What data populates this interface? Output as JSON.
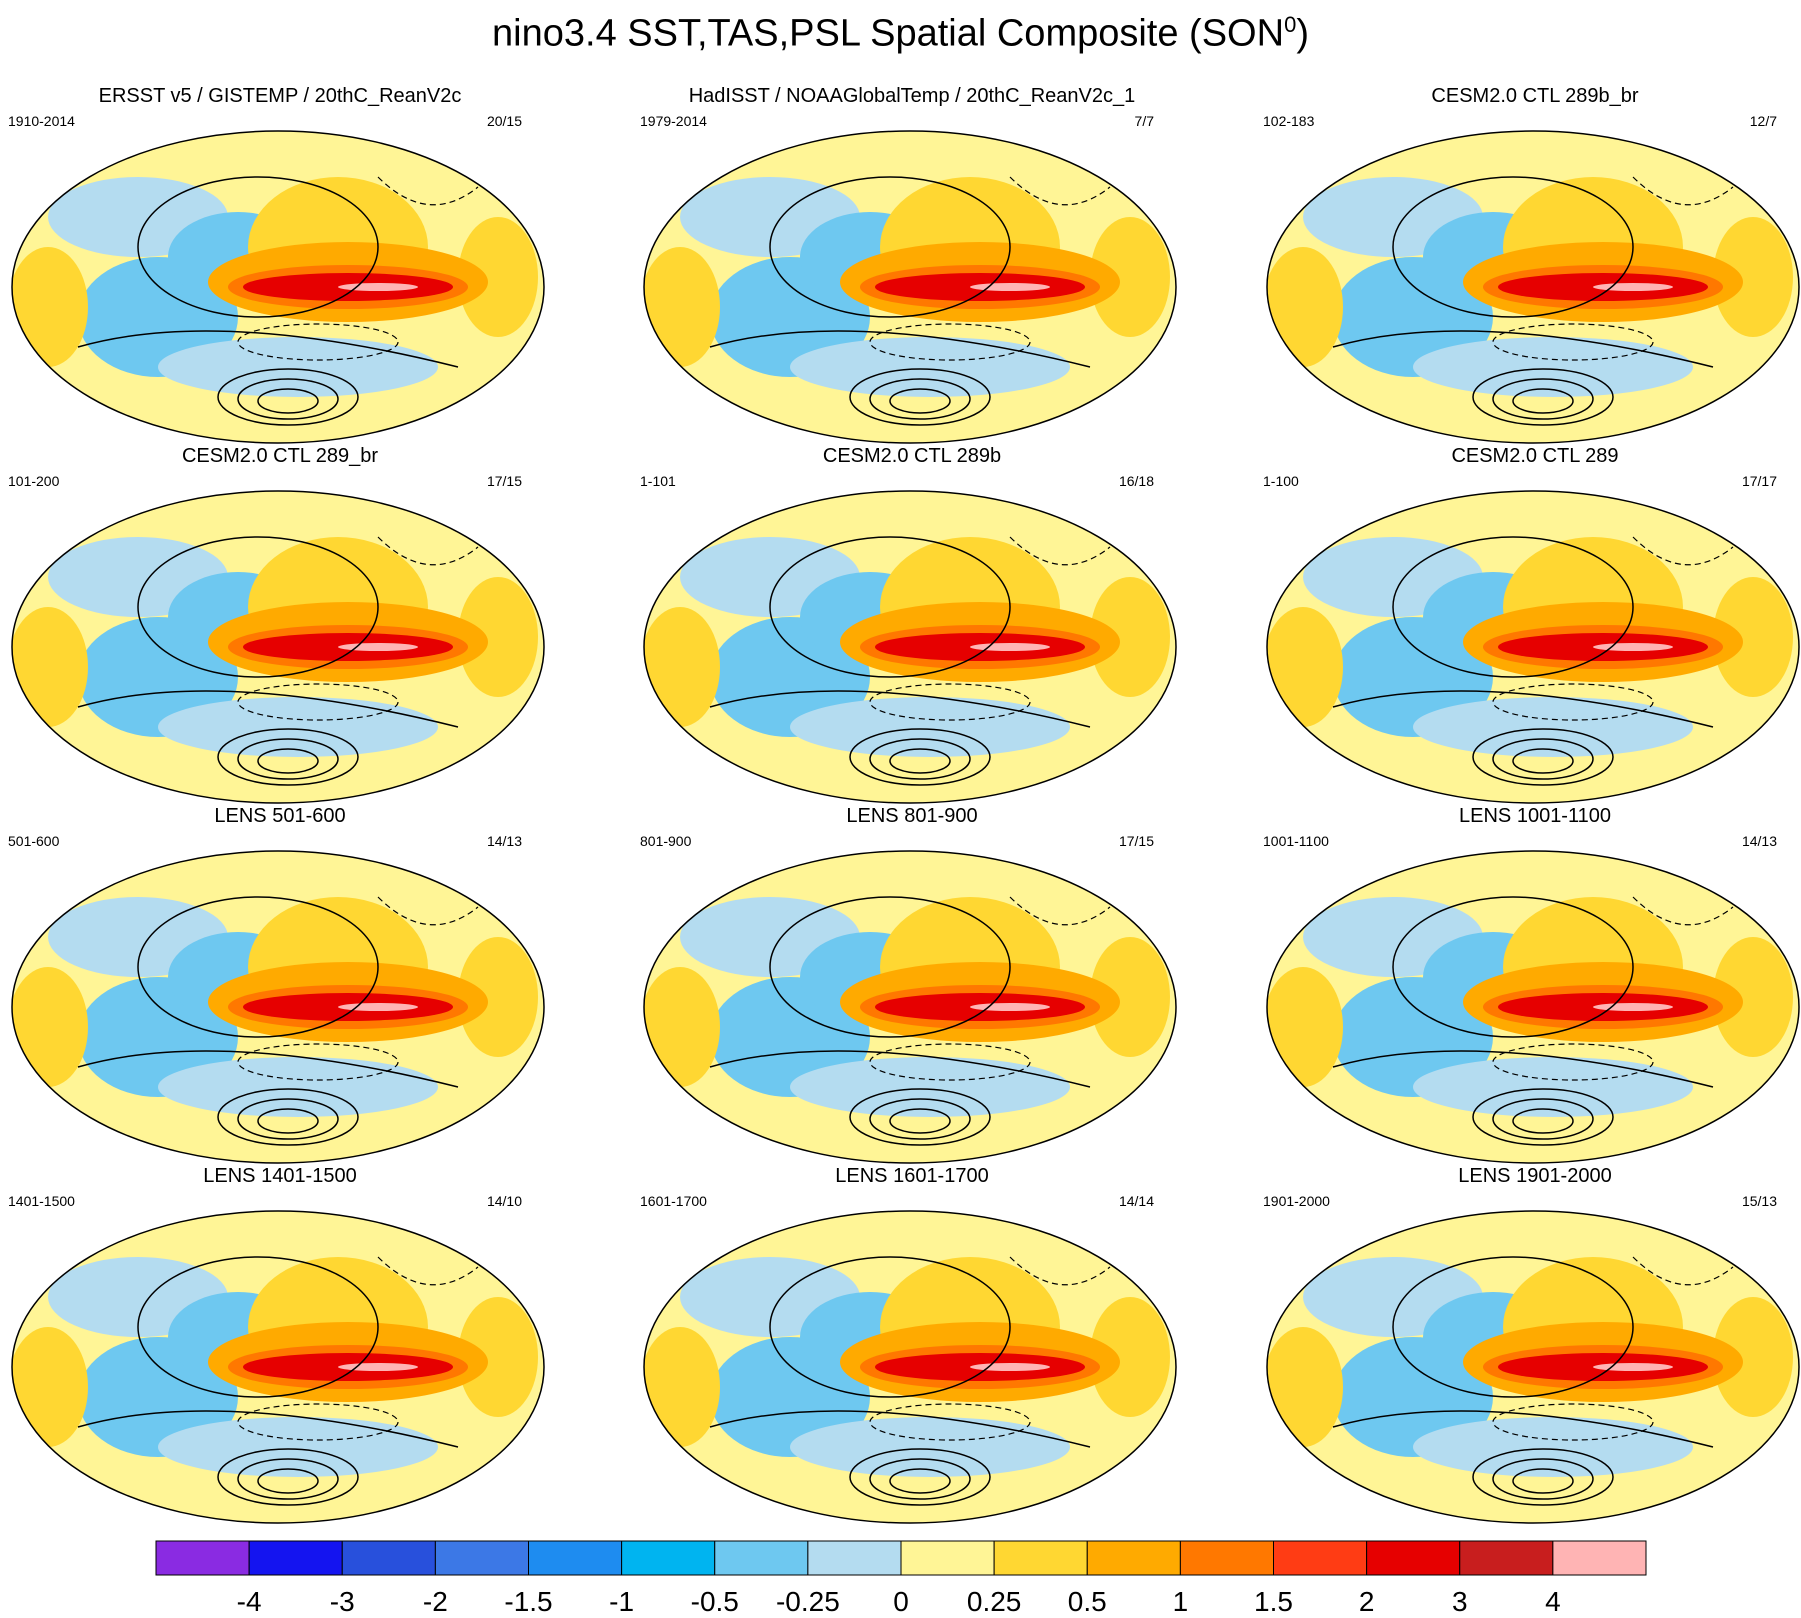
{
  "title": {
    "main": "nino3.4 SST,TAS,PSL Spatial Composite (SON",
    "superscript": "0",
    "close": ")"
  },
  "panels": [
    {
      "title": "ERSST v5 / GISTEMP / 20thC_ReanV2c",
      "years": "1910-2014",
      "count": "20/15"
    },
    {
      "title": "HadISST / NOAAGlobalTemp / 20thC_ReanV2c_1",
      "years": "1979-2014",
      "count": "7/7"
    },
    {
      "title": "CESM2.0 CTL 289b_br",
      "years": "102-183",
      "count": "12/7"
    },
    {
      "title": "CESM2.0 CTL 289_br",
      "years": "101-200",
      "count": "17/15"
    },
    {
      "title": "CESM2.0 CTL 289b",
      "years": "1-101",
      "count": "16/18"
    },
    {
      "title": "CESM2.0 CTL 289",
      "years": "1-100",
      "count": "17/17"
    },
    {
      "title": "LENS 501-600",
      "years": "501-600",
      "count": "14/13"
    },
    {
      "title": "LENS 801-900",
      "years": "801-900",
      "count": "17/15"
    },
    {
      "title": "LENS 1001-1100",
      "years": "1001-1100",
      "count": "14/13"
    },
    {
      "title": "LENS 1401-1500",
      "years": "1401-1500",
      "count": "14/10"
    },
    {
      "title": "LENS 1601-1700",
      "years": "1601-1700",
      "count": "14/14"
    },
    {
      "title": "LENS 1901-2000",
      "years": "1901-2000",
      "count": "15/13"
    }
  ],
  "colorbar": {
    "colors": [
      "#8a2be2",
      "#1414f0",
      "#2850dc",
      "#3c78e6",
      "#1e8cf0",
      "#00b4f0",
      "#6ec8f0",
      "#b4dcf0",
      "#fff596",
      "#ffd732",
      "#ffaa00",
      "#ff7800",
      "#ff3c14",
      "#e60000",
      "#c81e1e",
      "#ffb4b4"
    ],
    "labels": [
      "-4",
      "-3",
      "-2",
      "-1.5",
      "-1",
      "-0.5",
      "-0.25",
      "0",
      "0.25",
      "0.5",
      "1",
      "1.5",
      "2",
      "3",
      "4"
    ]
  }
}
